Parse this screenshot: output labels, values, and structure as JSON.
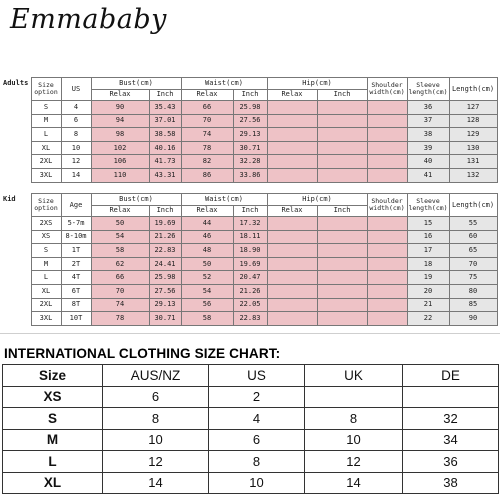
{
  "brand": "Emmababy",
  "adults": {
    "label": "Adults",
    "headers": {
      "size": "Size",
      "option": "option",
      "us": "US",
      "bust": "Bust(cm)",
      "waist": "Waist(cm)",
      "hip": "Hip(cm)",
      "shoulder": "Shoulder width(cm)",
      "sleeve": "Sleeve length(cm)",
      "length": "Length(cm)",
      "relax": "Relax",
      "inch": "Inch"
    },
    "rows": [
      {
        "size": "S",
        "us": "4",
        "bust_relax": "90",
        "bust_inch": "35.43",
        "waist_relax": "66",
        "waist_inch": "25.98",
        "sleeve": "36",
        "length": "127"
      },
      {
        "size": "M",
        "us": "6",
        "bust_relax": "94",
        "bust_inch": "37.01",
        "waist_relax": "70",
        "waist_inch": "27.56",
        "sleeve": "37",
        "length": "128"
      },
      {
        "size": "L",
        "us": "8",
        "bust_relax": "98",
        "bust_inch": "38.58",
        "waist_relax": "74",
        "waist_inch": "29.13",
        "sleeve": "38",
        "length": "129"
      },
      {
        "size": "XL",
        "us": "10",
        "bust_relax": "102",
        "bust_inch": "40.16",
        "waist_relax": "78",
        "waist_inch": "30.71",
        "sleeve": "39",
        "length": "130"
      },
      {
        "size": "2XL",
        "us": "12",
        "bust_relax": "106",
        "bust_inch": "41.73",
        "waist_relax": "82",
        "waist_inch": "32.28",
        "sleeve": "40",
        "length": "131"
      },
      {
        "size": "3XL",
        "us": "14",
        "bust_relax": "110",
        "bust_inch": "43.31",
        "waist_relax": "86",
        "waist_inch": "33.86",
        "sleeve": "41",
        "length": "132"
      }
    ]
  },
  "kids": {
    "label": "Kid",
    "headers": {
      "size": "Size",
      "option": "option",
      "age": "Age",
      "bust": "Bust(cm)",
      "waist": "Waist(cm)",
      "hip": "Hip(cm)",
      "shoulder": "Shoulder width(cm)",
      "sleeve": "Sleeve length(cm)",
      "length": "Length(cm)",
      "relax": "Relax",
      "inch": "Inch"
    },
    "rows": [
      {
        "size": "2XS",
        "age": "5-7m",
        "bust_relax": "50",
        "bust_inch": "19.69",
        "waist_relax": "44",
        "waist_inch": "17.32",
        "sleeve": "15",
        "length": "55"
      },
      {
        "size": "XS",
        "age": "8-10m",
        "bust_relax": "54",
        "bust_inch": "21.26",
        "waist_relax": "46",
        "waist_inch": "18.11",
        "sleeve": "16",
        "length": "60"
      },
      {
        "size": "S",
        "age": "1T",
        "bust_relax": "58",
        "bust_inch": "22.83",
        "waist_relax": "48",
        "waist_inch": "18.90",
        "sleeve": "17",
        "length": "65"
      },
      {
        "size": "M",
        "age": "2T",
        "bust_relax": "62",
        "bust_inch": "24.41",
        "waist_relax": "50",
        "waist_inch": "19.69",
        "sleeve": "18",
        "length": "70"
      },
      {
        "size": "L",
        "age": "4T",
        "bust_relax": "66",
        "bust_inch": "25.98",
        "waist_relax": "52",
        "waist_inch": "20.47",
        "sleeve": "19",
        "length": "75"
      },
      {
        "size": "XL",
        "age": "6T",
        "bust_relax": "70",
        "bust_inch": "27.56",
        "waist_relax": "54",
        "waist_inch": "21.26",
        "sleeve": "20",
        "length": "80"
      },
      {
        "size": "2XL",
        "age": "8T",
        "bust_relax": "74",
        "bust_inch": "29.13",
        "waist_relax": "56",
        "waist_inch": "22.05",
        "sleeve": "21",
        "length": "85"
      },
      {
        "size": "3XL",
        "age": "10T",
        "bust_relax": "78",
        "bust_inch": "30.71",
        "waist_relax": "58",
        "waist_inch": "22.83",
        "sleeve": "22",
        "length": "90"
      }
    ]
  },
  "international": {
    "title": "INTERNATIONAL CLOTHING SIZE CHART:",
    "headers": [
      "Size",
      "AUS/NZ",
      "US",
      "UK",
      "DE"
    ],
    "rows": [
      [
        "XS",
        "6",
        "2",
        "",
        ""
      ],
      [
        "S",
        "8",
        "4",
        "8",
        "32"
      ],
      [
        "M",
        "10",
        "6",
        "10",
        "34"
      ],
      [
        "L",
        "12",
        "8",
        "12",
        "36"
      ],
      [
        "XL",
        "14",
        "10",
        "14",
        "38"
      ]
    ]
  },
  "colors": {
    "pink_fill": "#eec2c6",
    "grey_fill": "#e6e6e6"
  }
}
